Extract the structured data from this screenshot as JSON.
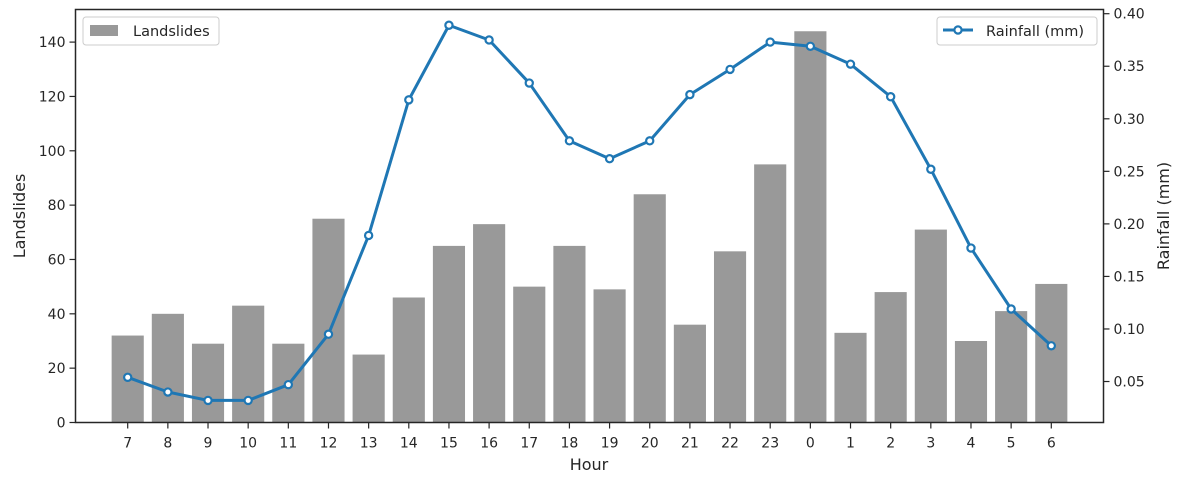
{
  "chart_data": {
    "type": "bar+line",
    "title": "",
    "xlabel": "Hour",
    "ylabel_left": "Landslides",
    "ylabel_right": "Rainfall (mm)",
    "categories": [
      "7",
      "8",
      "9",
      "10",
      "11",
      "12",
      "13",
      "14",
      "15",
      "16",
      "17",
      "18",
      "19",
      "20",
      "21",
      "22",
      "23",
      "0",
      "1",
      "2",
      "3",
      "4",
      "5",
      "6"
    ],
    "ylim_left": [
      0,
      152
    ],
    "ylim_right": [
      0.011,
      0.404
    ],
    "yticks_left": [
      0,
      20,
      40,
      60,
      80,
      100,
      120,
      140
    ],
    "yticks_right": [
      0.05,
      0.1,
      0.15,
      0.2,
      0.25,
      0.3,
      0.35,
      0.4
    ],
    "grid": false,
    "series": [
      {
        "name": "Landslides",
        "kind": "bar",
        "axis": "left",
        "color": "#999999",
        "values": [
          32,
          40,
          29,
          43,
          29,
          75,
          25,
          46,
          65,
          73,
          50,
          65,
          49,
          84,
          36,
          63,
          95,
          144,
          33,
          48,
          71,
          30,
          41,
          51
        ]
      },
      {
        "name": "Rainfall (mm)",
        "kind": "line",
        "axis": "right",
        "color": "#1f77b4",
        "values": [
          0.054,
          0.04,
          0.032,
          0.032,
          0.047,
          0.095,
          0.189,
          0.318,
          0.389,
          0.375,
          0.334,
          0.279,
          0.262,
          0.279,
          0.323,
          0.347,
          0.373,
          0.369,
          0.352,
          0.321,
          0.252,
          0.177,
          0.119,
          0.084
        ]
      }
    ],
    "legend_left": {
      "label": "Landslides",
      "placement": "top-left"
    },
    "legend_right": {
      "label": "Rainfall (mm)",
      "placement": "top-right"
    }
  }
}
